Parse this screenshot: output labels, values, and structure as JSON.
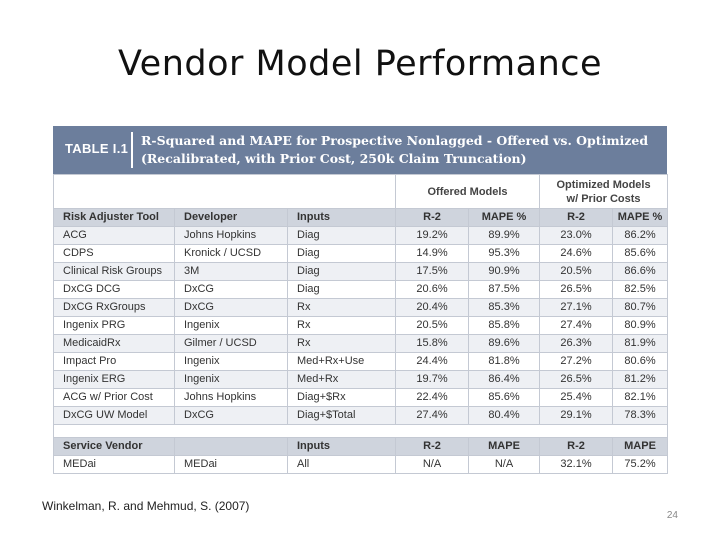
{
  "slide": {
    "title": "Vendor Model Performance",
    "footer_note": "Winkelman, R. and Mehmud, S. (2007)",
    "page_number": "24"
  },
  "table": {
    "tag": "TABLE I.1",
    "caption_line1": "R-Squared and MAPE for Prospective Nonlagged - Offered vs. Optimized",
    "caption_line2": "(Recalibrated, with Prior Cost, 250k Claim Truncation)",
    "group_offered": "Offered Models",
    "group_optimized_line1": "Optimized Models",
    "group_optimized_line2": "w/ Prior Costs",
    "headers": [
      "Risk Adjuster Tool",
      "Developer",
      "Inputs",
      "R-2",
      "MAPE %",
      "R-2",
      "MAPE %"
    ],
    "rows": [
      [
        "ACG",
        "Johns Hopkins",
        "Diag",
        "19.2%",
        "89.9%",
        "23.0%",
        "86.2%"
      ],
      [
        "CDPS",
        "Kronick / UCSD",
        "Diag",
        "14.9%",
        "95.3%",
        "24.6%",
        "85.6%"
      ],
      [
        "Clinical Risk Groups",
        "3M",
        "Diag",
        "17.5%",
        "90.9%",
        "20.5%",
        "86.6%"
      ],
      [
        "DxCG DCG",
        "DxCG",
        "Diag",
        "20.6%",
        "87.5%",
        "26.5%",
        "82.5%"
      ],
      [
        "DxCG RxGroups",
        "DxCG",
        "Rx",
        "20.4%",
        "85.3%",
        "27.1%",
        "80.7%"
      ],
      [
        "Ingenix PRG",
        "Ingenix",
        "Rx",
        "20.5%",
        "85.8%",
        "27.4%",
        "80.9%"
      ],
      [
        "MedicaidRx",
        "Gilmer / UCSD",
        "Rx",
        "15.8%",
        "89.6%",
        "26.3%",
        "81.9%"
      ],
      [
        "Impact Pro",
        "Ingenix",
        "Med+Rx+Use",
        "24.4%",
        "81.8%",
        "27.2%",
        "80.6%"
      ],
      [
        "Ingenix ERG",
        "Ingenix",
        "Med+Rx",
        "19.7%",
        "86.4%",
        "26.5%",
        "81.2%"
      ],
      [
        "ACG w/ Prior Cost",
        "Johns Hopkins",
        "Diag+$Rx",
        "22.4%",
        "85.6%",
        "25.4%",
        "82.1%"
      ],
      [
        "DxCG UW Model",
        "DxCG",
        "Diag+$Total",
        "27.4%",
        "80.4%",
        "29.1%",
        "78.3%"
      ]
    ],
    "vendor_headers": [
      "Service Vendor",
      "",
      "Inputs",
      "R-2",
      "MAPE",
      "R-2",
      "MAPE"
    ],
    "vendor_rows": [
      [
        "MEDai",
        "MEDai",
        "All",
        "N/A",
        "N/A",
        "32.1%",
        "75.2%"
      ]
    ]
  }
}
